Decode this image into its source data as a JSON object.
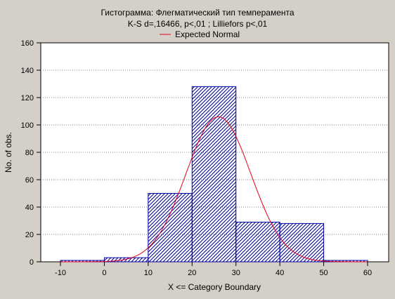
{
  "chart_data": {
    "type": "bar",
    "title": "Гистограмма: Флегматический тип темперамента",
    "subtitle": "K-S d=,16466, p<,01 ; Lilliefors p<,01",
    "legend": {
      "placement": "top-center",
      "entries": [
        "Expected Normal"
      ]
    },
    "xlabel": "X <= Category Boundary",
    "ylabel": "No. of obs.",
    "xlim": [
      -10,
      60
    ],
    "ylim": [
      0,
      160
    ],
    "x_ticks": [
      -10,
      0,
      10,
      20,
      30,
      40,
      50,
      60
    ],
    "y_ticks": [
      0,
      20,
      40,
      60,
      80,
      100,
      120,
      140,
      160
    ],
    "grid": true,
    "bins": [
      {
        "from": -10,
        "to": 0,
        "count": 1
      },
      {
        "from": 0,
        "to": 10,
        "count": 3
      },
      {
        "from": 10,
        "to": 20,
        "count": 50
      },
      {
        "from": 20,
        "to": 30,
        "count": 128
      },
      {
        "from": 30,
        "to": 40,
        "count": 29
      },
      {
        "from": 40,
        "to": 50,
        "count": 28
      },
      {
        "from": 50,
        "to": 60,
        "count": 1
      }
    ],
    "normal_curve": {
      "mean": 26,
      "peak": 106,
      "sd": 7.4
    },
    "colors": {
      "bar_stroke": "#0000a0",
      "hatch": "#00008b",
      "curve": "#e8001c",
      "grid": "#808080",
      "background": "#d4d0c8",
      "plot_background": "#ffffff"
    }
  }
}
